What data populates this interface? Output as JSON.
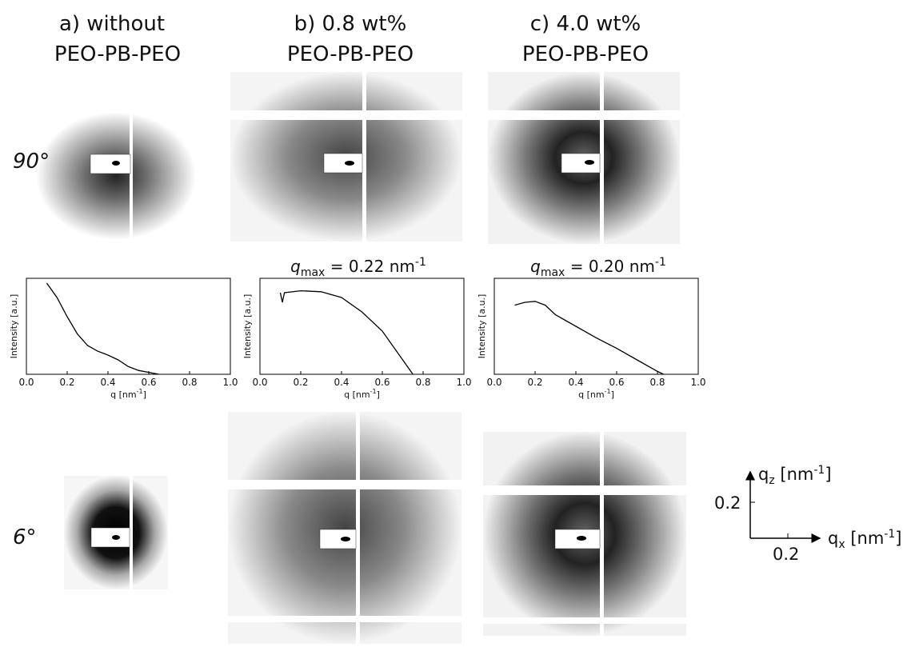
{
  "headers": [
    {
      "line1": "a)   without",
      "line2": "PEO-PB-PEO"
    },
    {
      "line1": "b) 0.8 wt%",
      "line2": "PEO-PB-PEO"
    },
    {
      "line1": "c) 4.0 wt%",
      "line2": "PEO-PB-PEO"
    }
  ],
  "row_labels": [
    "90°",
    "6°"
  ],
  "q_max_labels": [
    {
      "symbol": "q",
      "subscript": "max",
      "text": " =  0.22 nm",
      "superscript": "-1"
    },
    {
      "symbol": "q",
      "subscript": "max",
      "text": " = 0.20 nm",
      "superscript": "-1"
    }
  ],
  "chart_data": [
    {
      "type": "line",
      "ylabel": "Intensity [a.u.]",
      "xlabel": "q [nm",
      "xlabel_superscript": "-1",
      "xlabel_end": "]",
      "x": [
        0.1,
        0.15,
        0.2,
        0.25,
        0.3,
        0.35,
        0.4,
        0.45,
        0.5,
        0.55,
        0.6,
        0.65
      ],
      "values": [
        0.95,
        0.8,
        0.6,
        0.42,
        0.3,
        0.24,
        0.2,
        0.15,
        0.08,
        0.04,
        0.02,
        0.0
      ],
      "xlim": [
        0,
        1
      ],
      "ylim": [
        0,
        1
      ],
      "xticks": [
        {
          "value": 0,
          "label": "0.0"
        },
        0.2,
        0.4,
        0.6,
        0.8,
        {
          "value": 1,
          "label": "1.0"
        }
      ],
      "color": "#000000"
    },
    {
      "type": "line",
      "ylabel": "Intensity [a.u.]",
      "xlabel": "q [nm",
      "xlabel_superscript": "-1",
      "xlabel_end": "]",
      "x": [
        0.1,
        0.11,
        0.12,
        0.2,
        0.3,
        0.4,
        0.5,
        0.6,
        0.7,
        0.75
      ],
      "values": [
        0.85,
        0.75,
        0.85,
        0.87,
        0.86,
        0.8,
        0.65,
        0.45,
        0.15,
        0.0
      ],
      "xlim": [
        0,
        1
      ],
      "ylim": [
        0,
        1
      ],
      "xticks": [
        {
          "value": 0,
          "label": "0.0"
        },
        0.2,
        0.4,
        0.6,
        0.8,
        {
          "value": 1,
          "label": "1.0"
        }
      ],
      "color": "#000000"
    },
    {
      "type": "line",
      "ylabel": "Intensity [a.u.]",
      "xlabel": "q [nm",
      "xlabel_superscript": "-1",
      "xlabel_end": "]",
      "x": [
        0.1,
        0.15,
        0.2,
        0.25,
        0.3,
        0.4,
        0.5,
        0.6,
        0.7,
        0.8,
        0.83
      ],
      "values": [
        0.72,
        0.75,
        0.76,
        0.72,
        0.62,
        0.5,
        0.38,
        0.27,
        0.15,
        0.03,
        0.0
      ],
      "xlim": [
        0,
        1
      ],
      "ylim": [
        0,
        1
      ],
      "xticks": [
        {
          "value": 0,
          "label": "0.0"
        },
        0.2,
        0.4,
        0.6,
        0.8,
        {
          "value": 1,
          "label": "1.0"
        }
      ],
      "color": "#000000"
    }
  ],
  "axis_indicator": {
    "qz": {
      "symbol": "q",
      "subscript": "z",
      "text": " [nm",
      "superscript": "-1",
      "end": "]"
    },
    "qz_scale": "0.2",
    "qx": {
      "symbol": "q",
      "subscript": "x",
      "text": " [nm",
      "superscript": "-1",
      "end": "]"
    },
    "qx_scale": "0.2"
  }
}
